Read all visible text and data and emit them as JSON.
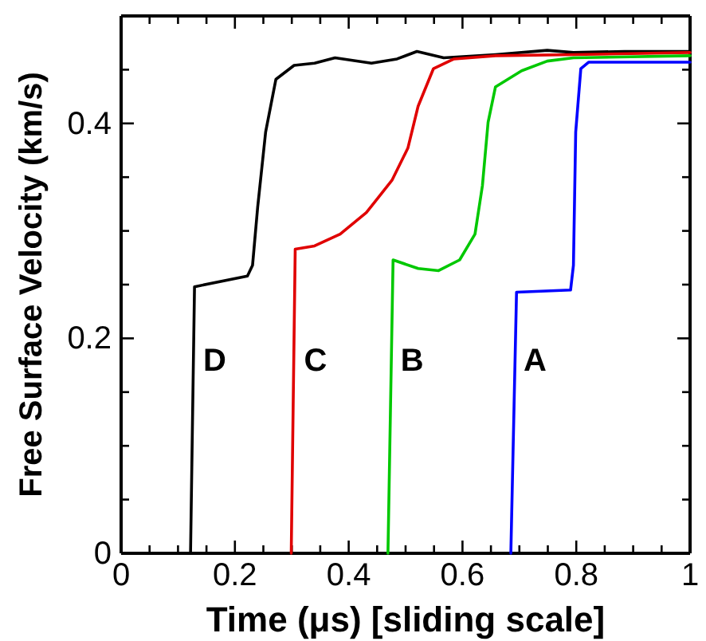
{
  "chart_data": {
    "type": "line",
    "xlabel": "Time (μs) [sliding scale]",
    "ylabel": "Free Surface Velocity (km/s)",
    "xlim": [
      0,
      1
    ],
    "ylim": [
      0,
      0.5
    ],
    "xticks": [
      0,
      {
        "value": 0.05,
        "label": null
      },
      {
        "value": 0.1,
        "label": null
      },
      {
        "value": 0.15,
        "label": null
      },
      0.2,
      {
        "value": 0.25,
        "label": null
      },
      {
        "value": 0.3,
        "label": null
      },
      {
        "value": 0.35,
        "label": null
      },
      0.4,
      {
        "value": 0.45,
        "label": null
      },
      {
        "value": 0.5,
        "label": null
      },
      {
        "value": 0.55,
        "label": null
      },
      0.6,
      {
        "value": 0.65,
        "label": null
      },
      {
        "value": 0.7,
        "label": null
      },
      {
        "value": 0.75,
        "label": null
      },
      0.8,
      {
        "value": 0.85,
        "label": null
      },
      {
        "value": 0.9,
        "label": null
      },
      {
        "value": 0.95,
        "label": null
      },
      1
    ],
    "yticks": [
      0,
      {
        "value": 0.05,
        "label": null
      },
      {
        "value": 0.1,
        "label": null
      },
      {
        "value": 0.15,
        "label": null
      },
      0.2,
      {
        "value": 0.25,
        "label": null
      },
      {
        "value": 0.3,
        "label": null
      },
      {
        "value": 0.35,
        "label": null
      },
      0.4,
      {
        "value": 0.45,
        "label": null
      }
    ],
    "grid": false,
    "legend": false,
    "marker": "none",
    "line_style": "solid",
    "series": [
      {
        "name": "D",
        "color": "#000000",
        "x": [
          0.122,
          0.129,
          0.222,
          0.231,
          0.24,
          0.254,
          0.272,
          0.304,
          0.34,
          0.376,
          0.44,
          0.485,
          0.52,
          0.567,
          0.658,
          0.749,
          0.795,
          0.885,
          1.0
        ],
        "values": [
          0,
          0.248,
          0.258,
          0.268,
          0.322,
          0.392,
          0.441,
          0.454,
          0.456,
          0.461,
          0.456,
          0.46,
          0.467,
          0.461,
          0.464,
          0.468,
          0.466,
          0.467,
          0.467
        ]
      },
      {
        "name": "C",
        "color": "#e00000",
        "x": [
          0.299,
          0.306,
          0.34,
          0.385,
          0.431,
          0.476,
          0.504,
          0.522,
          0.549,
          0.585,
          0.658,
          0.795,
          1.0
        ],
        "values": [
          0,
          0.283,
          0.286,
          0.297,
          0.317,
          0.347,
          0.377,
          0.416,
          0.451,
          0.46,
          0.463,
          0.464,
          0.466
        ]
      },
      {
        "name": "B",
        "color": "#00c800",
        "x": [
          0.469,
          0.478,
          0.522,
          0.558,
          0.595,
          0.622,
          0.635,
          0.645,
          0.658,
          0.704,
          0.749,
          0.795,
          1.0
        ],
        "values": [
          0,
          0.273,
          0.265,
          0.263,
          0.273,
          0.297,
          0.342,
          0.401,
          0.434,
          0.449,
          0.458,
          0.461,
          0.463
        ]
      },
      {
        "name": "A",
        "color": "#0000ff",
        "x": [
          0.685,
          0.695,
          0.79,
          0.795,
          0.799,
          0.808,
          0.822,
          1.0
        ],
        "values": [
          0,
          0.243,
          0.245,
          0.268,
          0.392,
          0.451,
          0.457,
          0.457
        ]
      }
    ]
  }
}
